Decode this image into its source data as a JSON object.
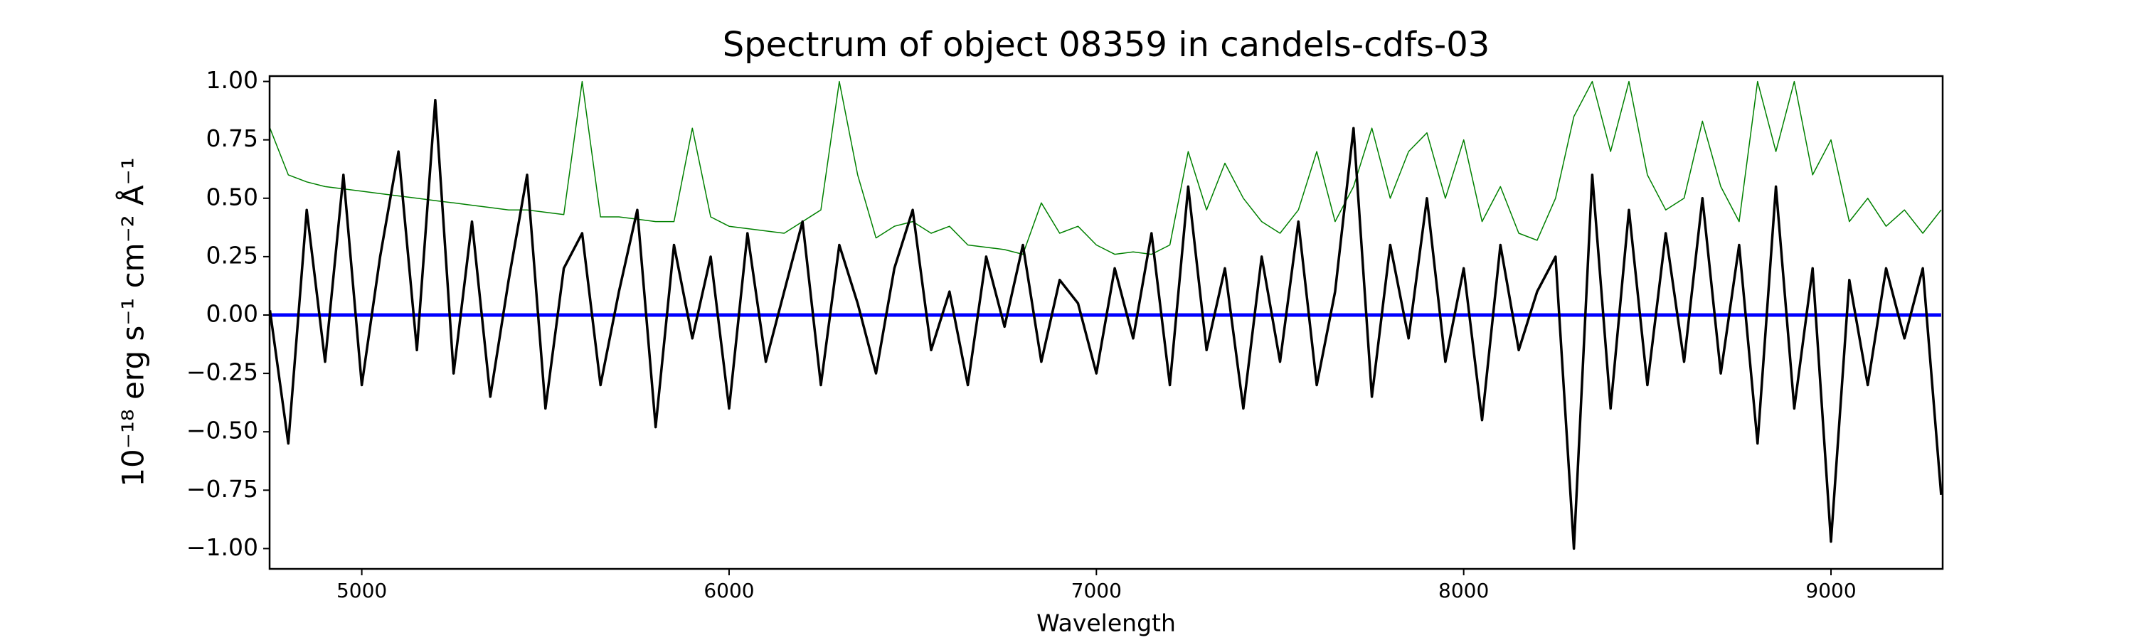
{
  "chart_data": {
    "type": "line",
    "title": "Spectrum of object 08359 in candels-cdfs-03",
    "xlabel": "Wavelength",
    "ylabel": "10⁻¹⁸ erg s⁻¹ cm⁻² Å⁻¹",
    "x": [
      4750,
      4800,
      4850,
      4900,
      4950,
      5000,
      5050,
      5100,
      5150,
      5200,
      5250,
      5300,
      5350,
      5400,
      5450,
      5500,
      5550,
      5600,
      5650,
      5700,
      5750,
      5800,
      5850,
      5900,
      5950,
      6000,
      6050,
      6100,
      6150,
      6200,
      6250,
      6300,
      6350,
      6400,
      6450,
      6500,
      6550,
      6600,
      6650,
      6700,
      6750,
      6800,
      6850,
      6900,
      6950,
      7000,
      7050,
      7100,
      7150,
      7200,
      7250,
      7300,
      7350,
      7400,
      7450,
      7500,
      7550,
      7600,
      7650,
      7700,
      7750,
      7800,
      7850,
      7900,
      7950,
      8000,
      8050,
      8100,
      8150,
      8200,
      8250,
      8300,
      8350,
      8400,
      8450,
      8500,
      8550,
      8600,
      8650,
      8700,
      8750,
      8800,
      8850,
      8900,
      8950,
      9000,
      9050,
      9100,
      9150,
      9200,
      9250,
      9300
    ],
    "series": [
      {
        "color": "#008000",
        "width": 1.5,
        "values": [
          0.8,
          0.6,
          0.57,
          0.55,
          0.54,
          0.53,
          0.52,
          0.51,
          0.5,
          0.49,
          0.48,
          0.47,
          0.46,
          0.45,
          0.45,
          0.44,
          0.43,
          1.0,
          0.42,
          0.42,
          0.41,
          0.4,
          0.4,
          0.8,
          0.42,
          0.38,
          0.37,
          0.36,
          0.35,
          0.4,
          0.45,
          1.0,
          0.6,
          0.33,
          0.38,
          0.4,
          0.35,
          0.38,
          0.3,
          0.29,
          0.28,
          0.26,
          0.48,
          0.35,
          0.38,
          0.3,
          0.26,
          0.27,
          0.26,
          0.3,
          0.7,
          0.45,
          0.65,
          0.5,
          0.4,
          0.35,
          0.45,
          0.7,
          0.4,
          0.55,
          0.8,
          0.5,
          0.7,
          0.78,
          0.5,
          0.75,
          0.4,
          0.55,
          0.35,
          0.32,
          0.5,
          0.85,
          1.0,
          0.7,
          1.0,
          0.6,
          0.45,
          0.5,
          0.83,
          0.55,
          0.4,
          1.0,
          0.7,
          1.0,
          0.6,
          0.75,
          0.4,
          0.5,
          0.38,
          0.45,
          0.35,
          0.45
        ]
      },
      {
        "color": "#0000ff",
        "width": 5,
        "values": [
          0,
          0,
          0,
          0,
          0,
          0,
          0,
          0,
          0,
          0,
          0,
          0,
          0,
          0,
          0,
          0,
          0,
          0,
          0,
          0,
          0,
          0,
          0,
          0,
          0,
          0,
          0,
          0,
          0,
          0,
          0,
          0,
          0,
          0,
          0,
          0,
          0,
          0,
          0,
          0,
          0,
          0,
          0,
          0,
          0,
          0,
          0,
          0,
          0,
          0,
          0,
          0,
          0,
          0,
          0,
          0,
          0,
          0,
          0,
          0,
          0,
          0,
          0,
          0,
          0,
          0,
          0,
          0,
          0,
          0,
          0,
          0,
          0,
          0,
          0,
          0,
          0,
          0,
          0,
          0,
          0,
          0,
          0,
          0,
          0,
          0,
          0,
          0,
          0,
          0,
          0,
          0
        ]
      },
      {
        "color": "#000000",
        "width": 3.5,
        "values": [
          0.02,
          -0.55,
          0.45,
          -0.2,
          0.6,
          -0.3,
          0.25,
          0.7,
          -0.15,
          0.92,
          -0.25,
          0.4,
          -0.35,
          0.15,
          0.6,
          -0.4,
          0.2,
          0.35,
          -0.3,
          0.1,
          0.45,
          -0.48,
          0.3,
          -0.1,
          0.25,
          -0.4,
          0.35,
          -0.2,
          0.1,
          0.4,
          -0.3,
          0.3,
          0.05,
          -0.25,
          0.2,
          0.45,
          -0.15,
          0.1,
          -0.3,
          0.25,
          -0.05,
          0.3,
          -0.2,
          0.15,
          0.05,
          -0.25,
          0.2,
          -0.1,
          0.35,
          -0.3,
          0.55,
          -0.15,
          0.2,
          -0.4,
          0.25,
          -0.2,
          0.4,
          -0.3,
          0.1,
          0.8,
          -0.35,
          0.3,
          -0.1,
          0.5,
          -0.2,
          0.2,
          -0.45,
          0.3,
          -0.15,
          0.1,
          0.25,
          -1.0,
          0.6,
          -0.4,
          0.45,
          -0.3,
          0.35,
          -0.2,
          0.5,
          -0.25,
          0.3,
          -0.55,
          0.55,
          -0.4,
          0.2,
          -0.97,
          0.15,
          -0.3,
          0.2,
          -0.1,
          0.2,
          -0.77
        ]
      }
    ],
    "xlim": [
      4749,
      9304
    ],
    "ylim": [
      -1.087,
      1.023
    ],
    "xticks": [
      5000,
      6000,
      7000,
      8000,
      9000
    ],
    "yticks": [
      {
        "value": -1,
        "label": "−1.00"
      },
      {
        "value": -0.75,
        "label": "−0.75"
      },
      {
        "value": -0.5,
        "label": "−0.50"
      },
      {
        "value": -0.25,
        "label": "−0.25"
      },
      {
        "value": 0,
        "label": "0.00"
      },
      {
        "value": 0.25,
        "label": "0.25"
      },
      {
        "value": 0.5,
        "label": "0.50"
      },
      {
        "value": 0.75,
        "label": "0.75"
      },
      {
        "value": 1,
        "label": "1.00"
      }
    ]
  }
}
